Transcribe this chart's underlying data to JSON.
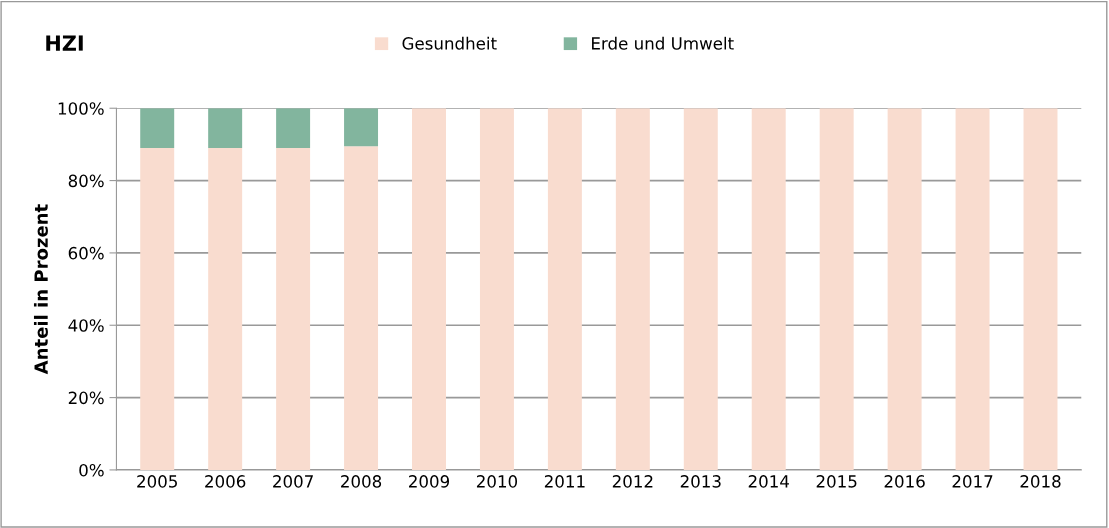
{
  "chart_data": {
    "type": "bar",
    "title": "HZI",
    "ylabel": "Anteil in Prozent",
    "categories": [
      "2005",
      "2006",
      "2007",
      "2008",
      "2009",
      "2010",
      "2011",
      "2012",
      "2013",
      "2014",
      "2015",
      "2016",
      "2017",
      "2018"
    ],
    "stacked": true,
    "series": [
      {
        "name": "Gesundheit",
        "color": "#f9dccf",
        "values": [
          89,
          89,
          89,
          89.5,
          100,
          100,
          100,
          100,
          100,
          100,
          100,
          100,
          100,
          100
        ]
      },
      {
        "name": "Erde und Umwelt",
        "color": "#82b59e",
        "values": [
          11,
          11,
          11,
          10.5,
          0,
          0,
          0,
          0,
          0,
          0,
          0,
          0,
          0,
          0
        ]
      }
    ],
    "ylim": [
      0,
      100
    ],
    "yticks": [
      {
        "value": 0,
        "label": "0%"
      },
      {
        "value": 20,
        "label": "20%"
      },
      {
        "value": 40,
        "label": "40%"
      },
      {
        "value": 60,
        "label": "60%"
      },
      {
        "value": 80,
        "label": "80%"
      },
      {
        "value": 100,
        "label": "100%"
      }
    ],
    "grid": "y",
    "legend": "top"
  }
}
